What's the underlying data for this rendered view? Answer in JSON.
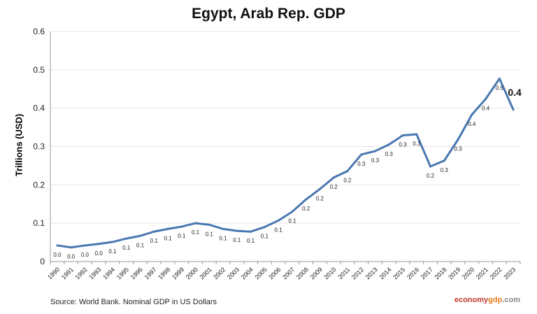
{
  "chart_data": {
    "type": "line",
    "title": "Egypt, Arab Rep. GDP",
    "ylabel": "Trillions (USD)",
    "ylim": [
      0,
      0.6
    ],
    "yticks": [
      "0",
      "0.1",
      "0.2",
      "0.3",
      "0.4",
      "0.5",
      "0.6"
    ],
    "grid": true,
    "categories": [
      "1990",
      "1991",
      "1992",
      "1993",
      "1994",
      "1995",
      "1996",
      "1997",
      "1998",
      "1999",
      "2000",
      "2001",
      "2002",
      "2003",
      "2004",
      "2005",
      "2006",
      "2007",
      "2008",
      "2009",
      "2010",
      "2011",
      "2012",
      "2013",
      "2014",
      "2015",
      "2016",
      "2017",
      "2018",
      "2019",
      "2020",
      "2021",
      "2022",
      "2023"
    ],
    "values": [
      0.042,
      0.037,
      0.042,
      0.046,
      0.051,
      0.06,
      0.067,
      0.078,
      0.085,
      0.091,
      0.1,
      0.096,
      0.085,
      0.08,
      0.078,
      0.09,
      0.107,
      0.13,
      0.162,
      0.189,
      0.219,
      0.236,
      0.279,
      0.288,
      0.305,
      0.329,
      0.332,
      0.248,
      0.263,
      0.318,
      0.383,
      0.424,
      0.477,
      0.396
    ],
    "data_labels": [
      "0.0",
      "0.0",
      "0.0",
      "0.0",
      "0.1",
      "0.1",
      "0.1",
      "0.1",
      "0.1",
      "0.1",
      "0.1",
      "0.1",
      "0.1",
      "0.1",
      "0.1",
      "0.1",
      "0.1",
      "0.1",
      "0.2",
      "0.2",
      "0.2",
      "0.2",
      "0.3",
      "0.3",
      "0.3",
      "0.3",
      "0.3",
      "0.2",
      "0.3",
      "0.3",
      "0.4",
      "0.4",
      "0.5",
      "0.4"
    ],
    "line_color": "#4a78b0"
  },
  "footer": {
    "source": "Source: World Bank.  Nominal GDP in US Dollars",
    "brand_a": "economy",
    "brand_b": "gdp",
    "brand_c": ".com"
  }
}
